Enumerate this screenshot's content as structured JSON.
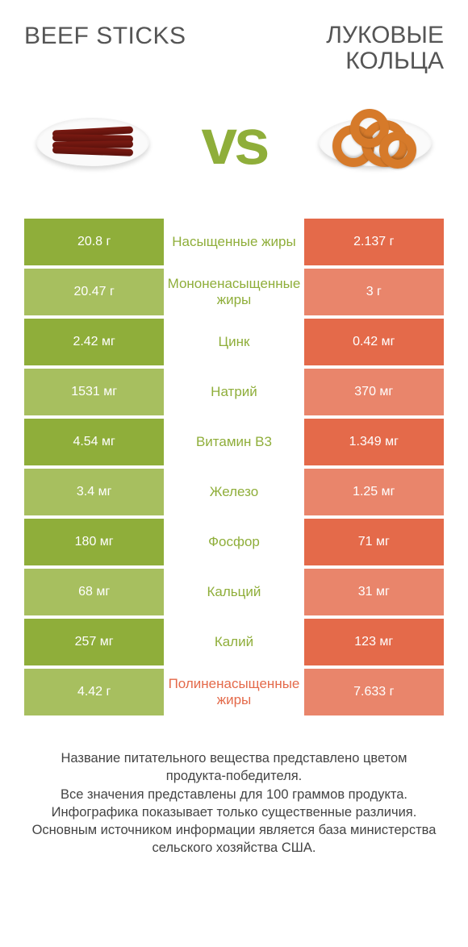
{
  "titles": {
    "left": "Beef sticks",
    "right_line1": "ЛУКОВЫЕ",
    "right_line2": "КОЛЬЦА"
  },
  "vs_label": "vs",
  "colors": {
    "green_dark": "#8fae3a",
    "green_light": "#a7bf5f",
    "orange_dark": "#e46a4a",
    "orange_light": "#e9856b",
    "mid_green": "#8fae3a",
    "mid_orange": "#e46a4a"
  },
  "rows": [
    {
      "left": "20.8 г",
      "mid": "Насыщенные жиры",
      "right": "2.137 г",
      "winner": "left"
    },
    {
      "left": "20.47 г",
      "mid": "Мононенасыщенные жиры",
      "right": "3 г",
      "winner": "left"
    },
    {
      "left": "2.42 мг",
      "mid": "Цинк",
      "right": "0.42 мг",
      "winner": "left"
    },
    {
      "left": "1531 мг",
      "mid": "Натрий",
      "right": "370 мг",
      "winner": "left"
    },
    {
      "left": "4.54 мг",
      "mid": "Витамин B3",
      "right": "1.349 мг",
      "winner": "left"
    },
    {
      "left": "3.4 мг",
      "mid": "Железо",
      "right": "1.25 мг",
      "winner": "left"
    },
    {
      "left": "180 мг",
      "mid": "Фосфор",
      "right": "71 мг",
      "winner": "left"
    },
    {
      "left": "68 мг",
      "mid": "Кальций",
      "right": "31 мг",
      "winner": "left"
    },
    {
      "left": "257 мг",
      "mid": "Калий",
      "right": "123 мг",
      "winner": "left"
    },
    {
      "left": "4.42 г",
      "mid": "Полиненасыщенные жиры",
      "right": "7.633 г",
      "winner": "right"
    }
  ],
  "footer_lines": [
    "Название питательного вещества представлено цветом продукта-победителя.",
    "Все значения представлены для 100 граммов продукта.",
    "Инфографика показывает только существенные различия.",
    "Основным источником информации является база министерства сельского хозяйства США."
  ]
}
